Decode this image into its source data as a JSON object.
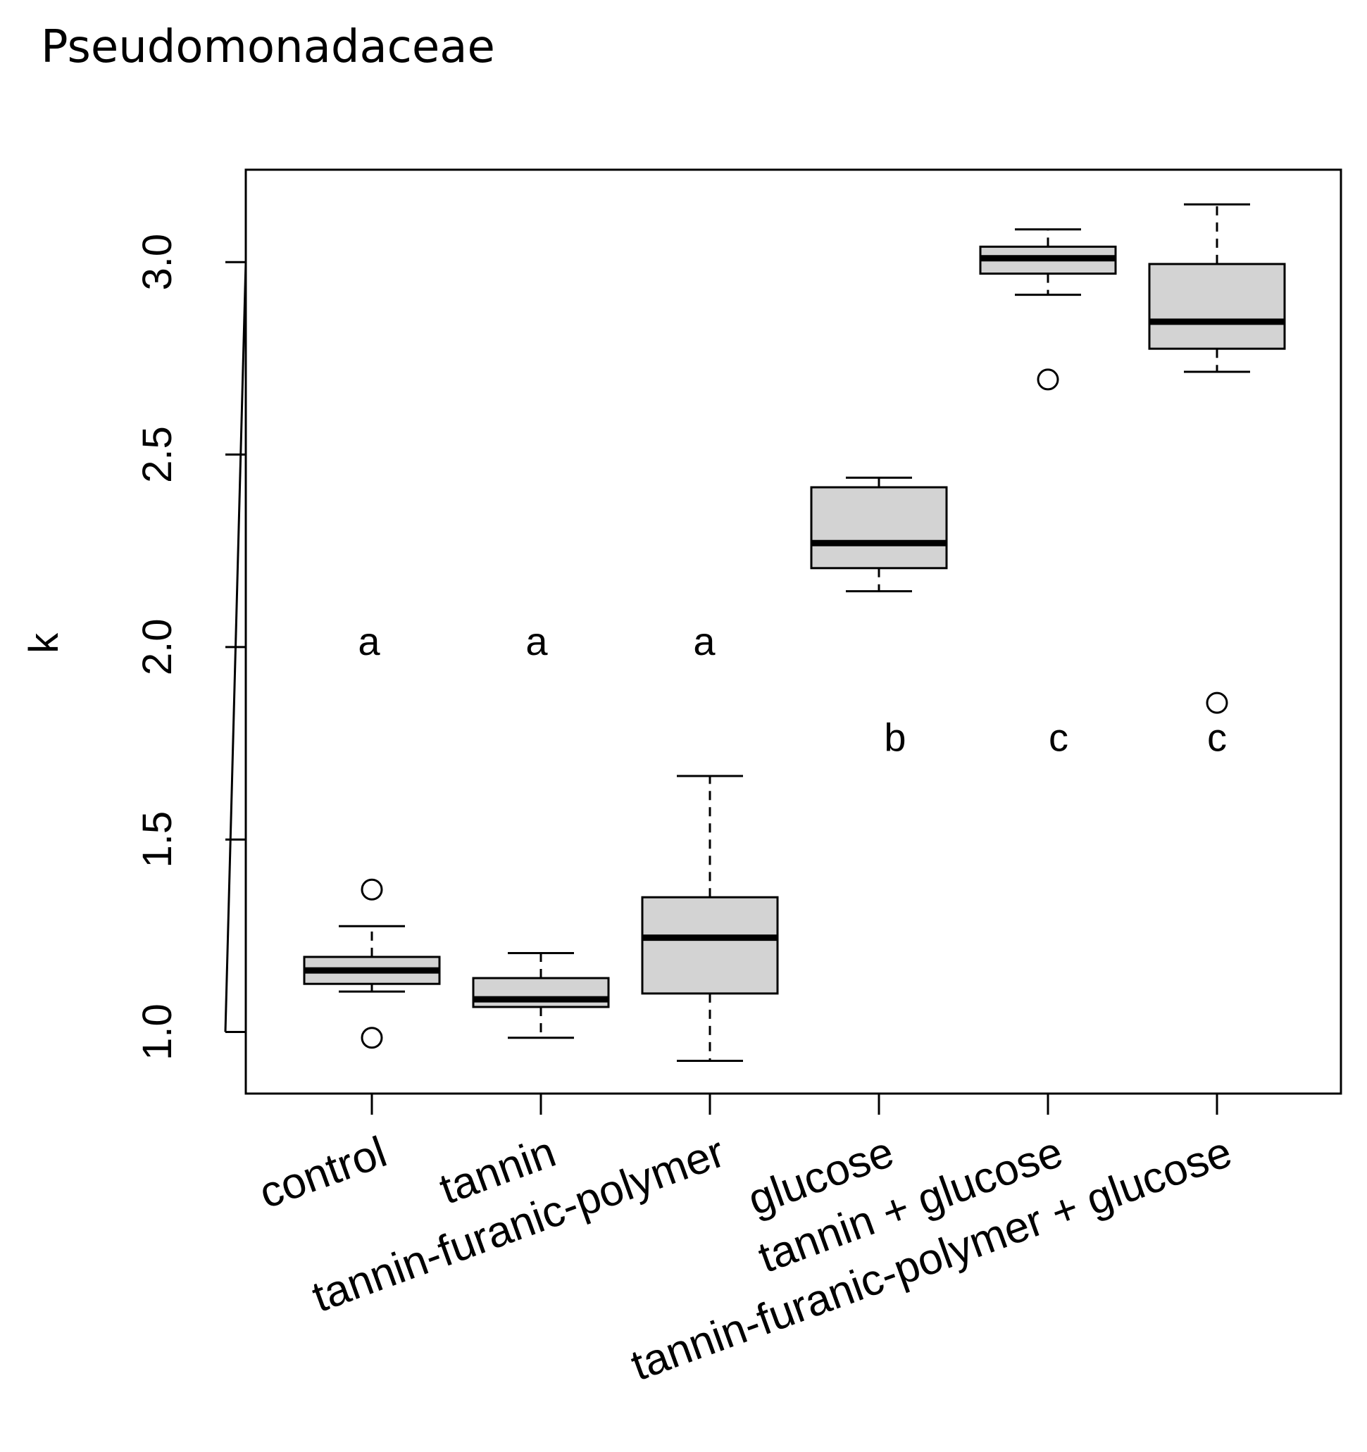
{
  "chart_data": {
    "type": "boxplot",
    "title": "Pseudomonadaceae",
    "xlabel": "",
    "ylabel": "k",
    "ylim": [
      0.84,
      3.24
    ],
    "yticks": [
      1.0,
      1.5,
      2.0,
      2.5,
      3.0
    ],
    "ytick_labels": [
      "1.0",
      "1.5",
      "2.0",
      "2.5",
      "3.0"
    ],
    "grid": false,
    "categories": [
      "control",
      "tannin",
      "tannin-furanic-polymer",
      "glucose",
      "tannin + glucose",
      "tannin-furanic-polymer + glucose"
    ],
    "boxes": [
      {
        "whisker_low": 1.105,
        "q1": 1.125,
        "median": 1.16,
        "q3": 1.195,
        "whisker_high": 1.275,
        "outliers": [
          1.37,
          0.985
        ]
      },
      {
        "whisker_low": 0.985,
        "q1": 1.065,
        "median": 1.085,
        "q3": 1.14,
        "whisker_high": 1.205,
        "outliers": []
      },
      {
        "whisker_low": 0.925,
        "q1": 1.1,
        "median": 1.245,
        "q3": 1.35,
        "whisker_high": 1.665,
        "outliers": []
      },
      {
        "whisker_low": 2.145,
        "q1": 2.205,
        "median": 2.27,
        "q3": 2.415,
        "whisker_high": 2.44,
        "outliers": []
      },
      {
        "whisker_low": 2.915,
        "q1": 2.97,
        "median": 3.01,
        "q3": 3.04,
        "whisker_high": 3.085,
        "outliers": [
          2.695
        ]
      },
      {
        "whisker_low": 2.715,
        "q1": 2.775,
        "median": 2.845,
        "q3": 2.995,
        "whisker_high": 3.15,
        "outliers": [
          1.855
        ]
      }
    ],
    "group_letters": [
      {
        "label": "a",
        "y": 1.98
      },
      {
        "label": "a",
        "y": 1.98
      },
      {
        "label": "a",
        "y": 1.98
      },
      {
        "label": "b",
        "y": 1.73
      },
      {
        "label": "c",
        "y": 1.73
      },
      {
        "label": "c",
        "y": 1.73
      }
    ],
    "colors": {
      "box_fill": "#d3d3d3",
      "stroke": "#000000"
    }
  }
}
